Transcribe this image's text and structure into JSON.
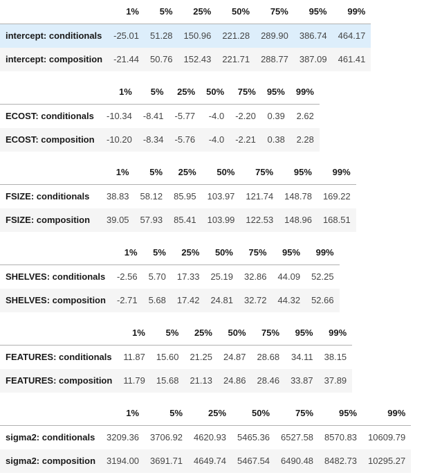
{
  "percentile_headers": [
    "1%",
    "5%",
    "25%",
    "50%",
    "75%",
    "95%",
    "99%"
  ],
  "colors": {
    "highlight_row": "#ddeefb",
    "stripe_row": "#f5f5f5",
    "header_border": "#b0b0b0"
  },
  "tables": [
    {
      "id": "intercept",
      "rows": [
        {
          "label": "intercept: conditionals",
          "highlighted": true,
          "values": [
            "-25.01",
            "51.28",
            "150.96",
            "221.28",
            "289.90",
            "386.74",
            "464.17"
          ]
        },
        {
          "label": "intercept: composition",
          "highlighted": false,
          "values": [
            "-21.44",
            "50.76",
            "152.43",
            "221.71",
            "288.77",
            "387.09",
            "461.41"
          ]
        }
      ]
    },
    {
      "id": "ecost",
      "rows": [
        {
          "label": "ECOST: conditionals",
          "highlighted": false,
          "values": [
            "-10.34",
            "-8.41",
            "-5.77",
            "-4.0",
            "-2.20",
            "0.39",
            "2.62"
          ]
        },
        {
          "label": "ECOST: composition",
          "highlighted": false,
          "values": [
            "-10.20",
            "-8.34",
            "-5.76",
            "-4.0",
            "-2.21",
            "0.38",
            "2.28"
          ]
        }
      ]
    },
    {
      "id": "fsize",
      "rows": [
        {
          "label": "FSIZE: conditionals",
          "highlighted": false,
          "values": [
            "38.83",
            "58.12",
            "85.95",
            "103.97",
            "121.74",
            "148.78",
            "169.22"
          ]
        },
        {
          "label": "FSIZE: composition",
          "highlighted": false,
          "values": [
            "39.05",
            "57.93",
            "85.41",
            "103.99",
            "122.53",
            "148.96",
            "168.51"
          ]
        }
      ]
    },
    {
      "id": "shelves",
      "rows": [
        {
          "label": "SHELVES: conditionals",
          "highlighted": false,
          "values": [
            "-2.56",
            "5.70",
            "17.33",
            "25.19",
            "32.86",
            "44.09",
            "52.25"
          ]
        },
        {
          "label": "SHELVES: composition",
          "highlighted": false,
          "values": [
            "-2.71",
            "5.68",
            "17.42",
            "24.81",
            "32.72",
            "44.32",
            "52.66"
          ]
        }
      ]
    },
    {
      "id": "features",
      "rows": [
        {
          "label": "FEATURES: conditionals",
          "highlighted": false,
          "values": [
            "11.87",
            "15.60",
            "21.25",
            "24.87",
            "28.68",
            "34.11",
            "38.15"
          ]
        },
        {
          "label": "FEATURES: composition",
          "highlighted": false,
          "values": [
            "11.79",
            "15.68",
            "21.13",
            "24.86",
            "28.46",
            "33.87",
            "37.89"
          ]
        }
      ]
    },
    {
      "id": "sigma2",
      "rows": [
        {
          "label": "sigma2: conditionals",
          "highlighted": false,
          "values": [
            "3209.36",
            "3706.92",
            "4620.93",
            "5465.36",
            "6527.58",
            "8570.83",
            "10609.79"
          ]
        },
        {
          "label": "sigma2: composition",
          "highlighted": false,
          "values": [
            "3194.00",
            "3691.71",
            "4649.74",
            "5467.54",
            "6490.48",
            "8482.73",
            "10295.27"
          ]
        }
      ]
    }
  ]
}
